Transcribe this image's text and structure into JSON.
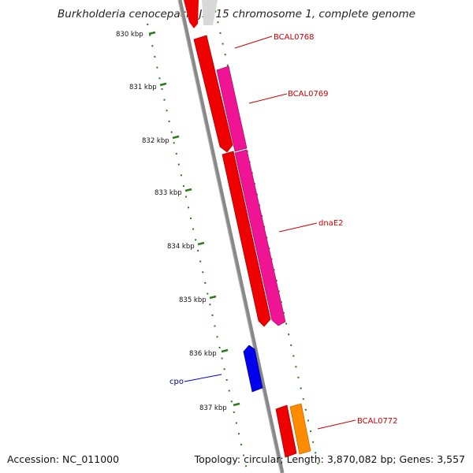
{
  "title": "Burkholderia cenocepacia J2315 chromosome 1, complete genome",
  "accession": "Accession: NC_011000",
  "summary": "Topology: circular; Length: 3,870,082 bp; Genes: 3,557",
  "ticks": [
    "830 kbp",
    "831 kbp",
    "832 kbp",
    "833 kbp",
    "834 kbp",
    "835 kbp",
    "836 kbp",
    "837 kbp"
  ],
  "gene_labels": [
    {
      "name": "BCAL0768",
      "color": "#cc0000"
    },
    {
      "name": "BCAL0769",
      "color": "#cc0000"
    },
    {
      "name": "dnaE2",
      "color": "#cc0000"
    },
    {
      "name": "cpo",
      "color": "#0000aa"
    },
    {
      "name": "BCAL0772",
      "color": "#cc0000"
    }
  ],
  "colors": {
    "backbone": "#888888",
    "tick": "#2a7a1a",
    "gene_red": "#ee0000",
    "gene_magenta": "#ee1493",
    "gene_blue": "#0000ee",
    "gene_orange": "#ff8c00",
    "leader_red": "#cc0000",
    "leader_blue": "#0000cc"
  }
}
